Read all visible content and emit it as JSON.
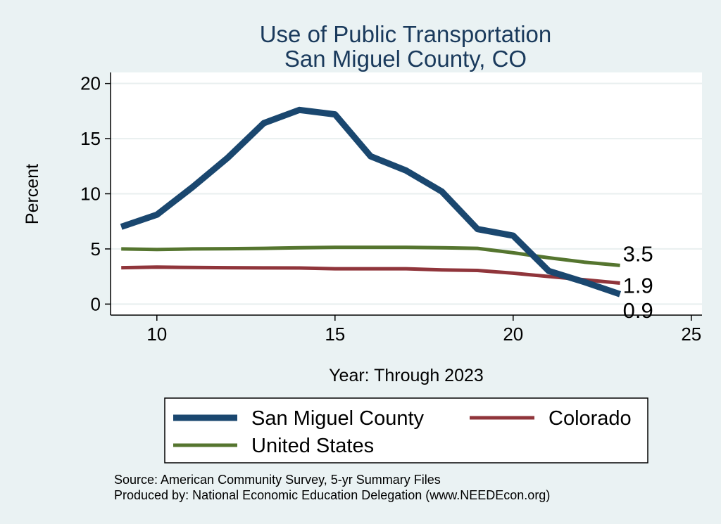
{
  "chart_data": {
    "type": "line",
    "title": "Use of Public Transportation",
    "subtitle": "San Miguel County, CO",
    "xlabel": "Year: Through 2023",
    "ylabel": "Percent",
    "xlim": [
      8.7,
      25.3
    ],
    "ylim": [
      -1,
      21
    ],
    "xticks": [
      10,
      15,
      20,
      25
    ],
    "yticks": [
      0,
      5,
      10,
      15,
      20
    ],
    "grid": true,
    "x": [
      9,
      10,
      11,
      12,
      13,
      14,
      15,
      16,
      17,
      18,
      19,
      20,
      21,
      22,
      23
    ],
    "series": [
      {
        "name": "San Miguel County",
        "color": "#1a476f",
        "values": [
          7.0,
          8.1,
          10.6,
          13.3,
          16.4,
          17.6,
          17.2,
          13.4,
          12.1,
          10.2,
          6.8,
          6.2,
          3.0,
          2.0,
          0.9
        ],
        "end_label": "0.9"
      },
      {
        "name": "Colorado",
        "color": "#90353b",
        "values": [
          3.3,
          3.35,
          3.32,
          3.3,
          3.28,
          3.27,
          3.2,
          3.2,
          3.2,
          3.1,
          3.05,
          2.8,
          2.5,
          2.2,
          1.9
        ],
        "end_label": "1.9"
      },
      {
        "name": "United States",
        "color": "#55752f",
        "values": [
          5.0,
          4.95,
          5.0,
          5.02,
          5.05,
          5.1,
          5.15,
          5.15,
          5.15,
          5.1,
          5.05,
          4.65,
          4.2,
          3.8,
          3.5
        ],
        "end_label": "3.5"
      }
    ],
    "legend_position": "bottom"
  },
  "notes": {
    "source": "Source: American Community Survey, 5-yr Summary Files",
    "produced": "Produced by: National Economic Education Delegation (www.NEEDEcon.org)"
  }
}
